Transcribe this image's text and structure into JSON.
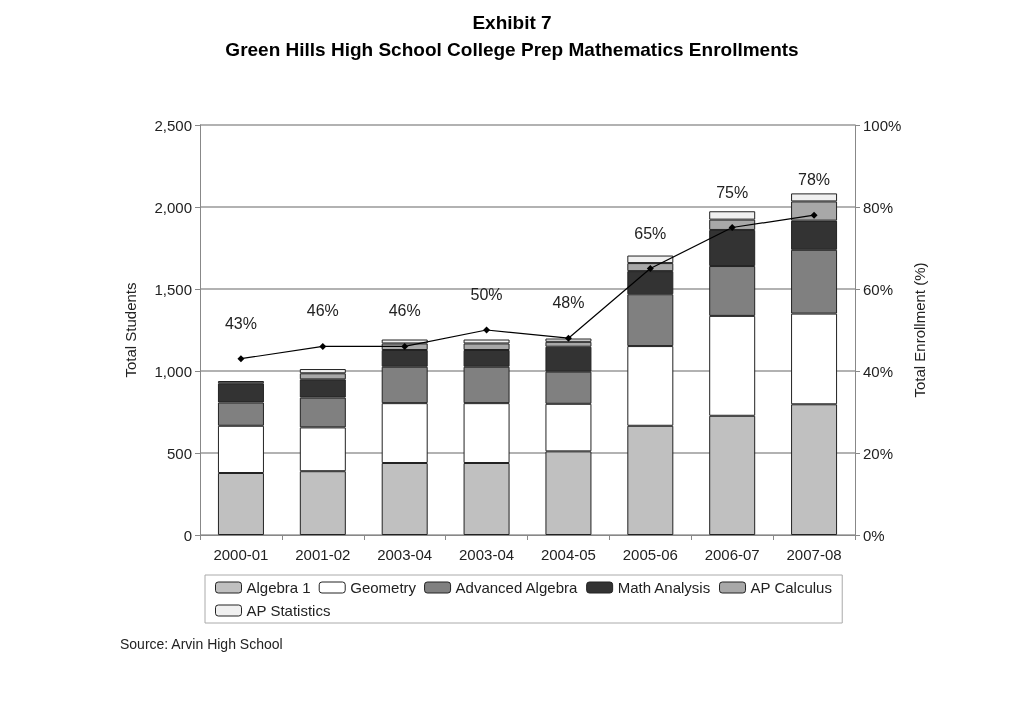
{
  "chart_data": {
    "type": "bar",
    "title": "Exhibit 7",
    "subtitle": "Green Hills High School College Prep Mathematics Enrollments",
    "ylabel": "Total Students",
    "y2label": "Total Enrollment (%)",
    "categories": [
      "2000-01",
      "2001-02",
      "2003-04",
      "2003-04",
      "2004-05",
      "2005-06",
      "2006-07",
      "2007-08"
    ],
    "stacked": true,
    "series": [
      {
        "name": "Algebra 1",
        "color": "#c0c0c0",
        "values": [
          378,
          389,
          439,
          439,
          510,
          666,
          727,
          797
        ]
      },
      {
        "name": "Geometry",
        "color": "#ffffff",
        "values": [
          288,
          267,
          365,
          365,
          290,
          486,
          609,
          553
        ]
      },
      {
        "name": "Advanced Algebra",
        "color": "#808080",
        "values": [
          142,
          182,
          222,
          222,
          196,
          316,
          304,
          389
        ]
      },
      {
        "name": "Math Analysis",
        "color": "#333333",
        "values": [
          117,
          111,
          102,
          102,
          152,
          141,
          220,
          178
        ]
      },
      {
        "name": "AP Calculus",
        "color": "#a8a8a8",
        "values": [
          14,
          37,
          40,
          40,
          30,
          49,
          63,
          117
        ]
      },
      {
        "name": "AP Statistics",
        "color": "#f0f0f0",
        "values": [
          null,
          26,
          24,
          24,
          20,
          46,
          51,
          49
        ]
      },
      {
        "type": "line",
        "axis": "y2",
        "color": "#000000",
        "marker": "diamond",
        "values": [
          43,
          46,
          46,
          50,
          48,
          65,
          75,
          78
        ],
        "value_labels": [
          "43%",
          "46%",
          "46%",
          "50%",
          "48%",
          "65%",
          "75%",
          "78%"
        ]
      }
    ],
    "ylim": [
      0,
      2500
    ],
    "yticks": [
      0,
      500,
      {
        "value": 1000,
        "label": "1,000"
      },
      {
        "value": 1500,
        "label": "1,500"
      },
      {
        "value": 2000,
        "label": "2,000"
      },
      {
        "value": 2500,
        "label": "2,500"
      }
    ],
    "y2lim": [
      0,
      100
    ],
    "y2ticks": [
      {
        "value": 0,
        "label": "0%"
      },
      {
        "value": 20,
        "label": "20%"
      },
      {
        "value": 40,
        "label": "40%"
      },
      {
        "value": 60,
        "label": "60%"
      },
      {
        "value": 80,
        "label": "80%"
      },
      {
        "value": 100,
        "label": "100%"
      }
    ],
    "grid": "y",
    "legend": "bottom",
    "annotations": [
      "Source: Arvin High School"
    ]
  }
}
